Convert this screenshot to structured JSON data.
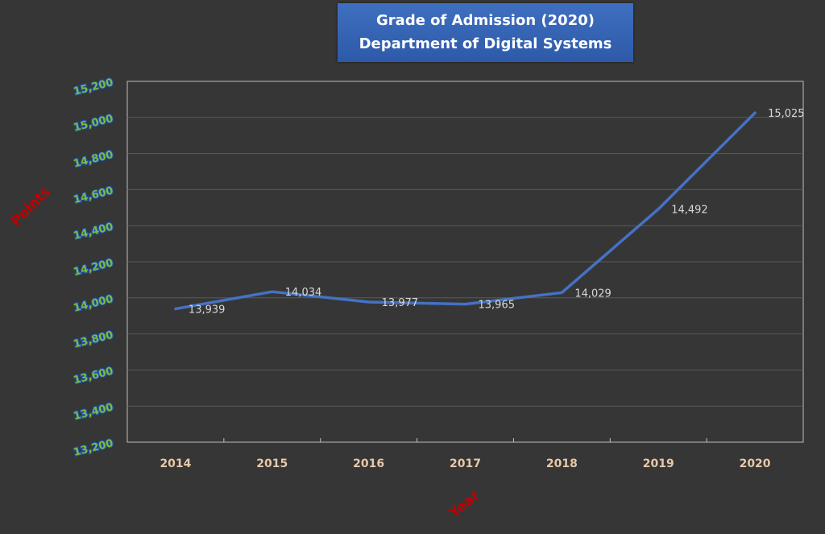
{
  "chart_data": {
    "type": "line",
    "title": [
      "Grade of Admission (2020)",
      "Department of Digital Systems"
    ],
    "xlabel": "Year",
    "ylabel": "Points",
    "categories": [
      "2014",
      "2015",
      "2016",
      "2017",
      "2018",
      "2019",
      "2020"
    ],
    "series": [
      {
        "values": [
          13939,
          14034,
          13977,
          13965,
          14029,
          14492,
          15025
        ],
        "labels": [
          "13,939",
          "14,034",
          "13,977",
          "13,965",
          "14,029",
          "14,492",
          "15,025"
        ],
        "color": "#4472c4"
      }
    ],
    "ylim": [
      13200,
      15200
    ],
    "yticks": [
      13200,
      13400,
      13600,
      13800,
      14000,
      14200,
      14400,
      14600,
      14800,
      15000,
      15200
    ],
    "ytick_labels": [
      "13,200",
      "13,400",
      "13,600",
      "13,800",
      "14,000",
      "14,200",
      "14,400",
      "14,600",
      "14,800",
      "15,000",
      "15,200"
    ],
    "grid": true,
    "legend": "none",
    "colors": {
      "background": "#363636",
      "gridline": "#5a5a5a",
      "axis": "#bfbfbf",
      "title_box": "#3464b4",
      "title_text": "#ffffff",
      "ytick_fill": "#7dbb3f",
      "ytick_outline": "#1f4fa8",
      "xtick": "#e8c8a8",
      "axis_title": "#c00000",
      "data_label": "#d8d8d8"
    }
  }
}
